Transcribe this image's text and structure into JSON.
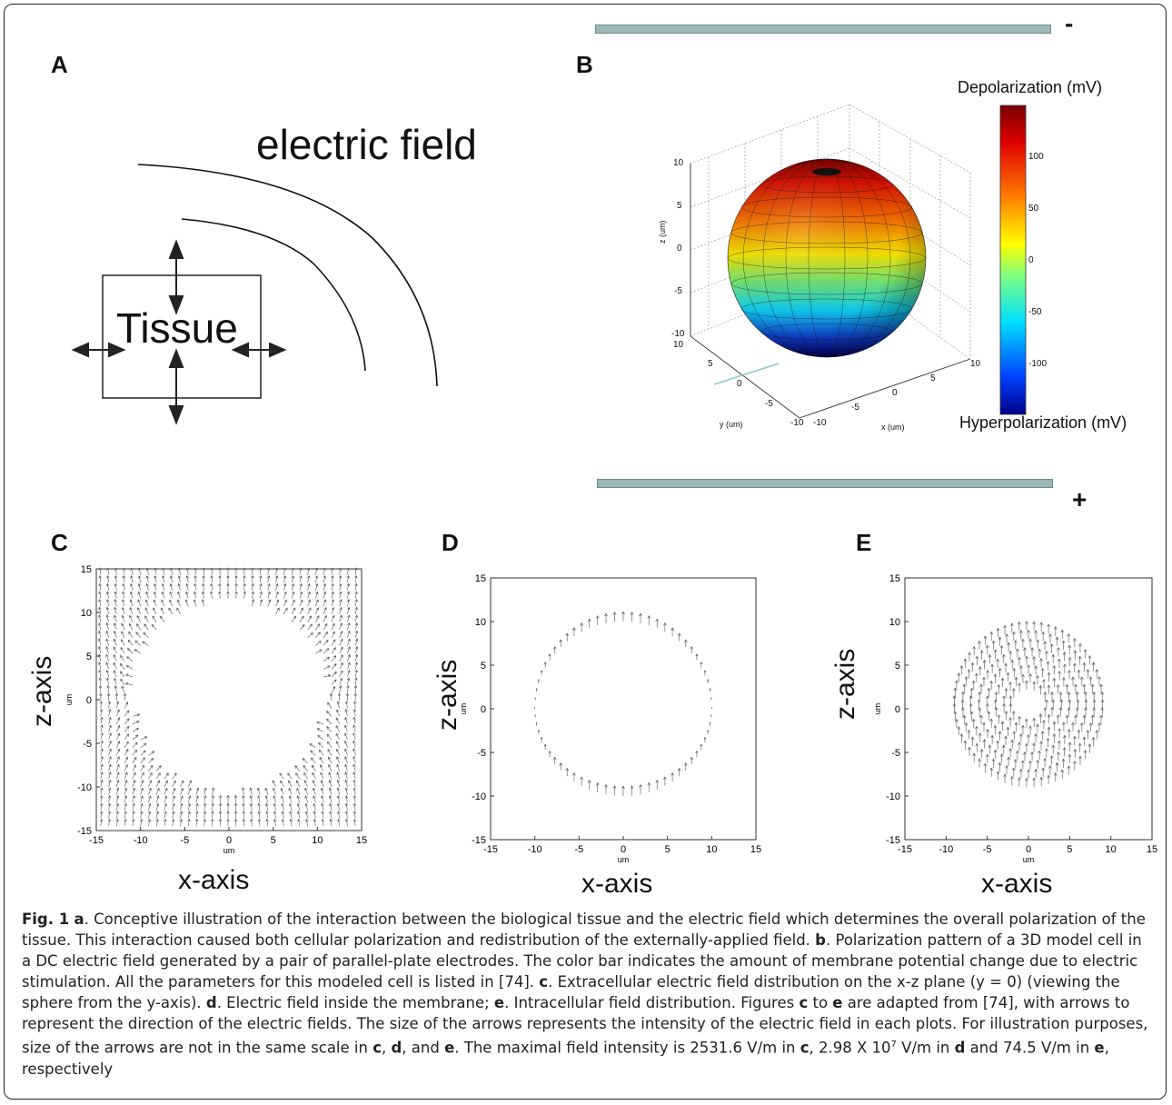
{
  "panels": {
    "a": {
      "label": "A",
      "title": "electric field",
      "tissue": "Tissue"
    },
    "b": {
      "label": "B",
      "minus": "-",
      "plus": "+",
      "z_label": "z (um)",
      "y_label": "y (um)",
      "x_label": "x (um)",
      "z_ticks": [
        "10",
        "5",
        "0",
        "-5",
        "-10"
      ],
      "y_ticks": [
        "10",
        "5",
        "0",
        "-5",
        "-10"
      ],
      "x_ticks": [
        "-10",
        "-5",
        "0",
        "5",
        "10"
      ],
      "colorbar_top": "Depolarization (mV)",
      "colorbar_bottom": "Hyperpolarization (mV)",
      "colorbar_ticks": [
        "100",
        "50",
        "0",
        "-50",
        "-100"
      ]
    },
    "c": {
      "label": "C",
      "xaxis": "x-axis",
      "zaxis": "z-axis",
      "unit": "um",
      "ticks": [
        "15",
        "10",
        "5",
        "0",
        "-5",
        "-10",
        "-15"
      ],
      "xticks": [
        "-15",
        "-10",
        "-5",
        "0",
        "5",
        "10",
        "15"
      ]
    },
    "d": {
      "label": "D",
      "xaxis": "x-axis",
      "zaxis": "z-axis",
      "unit": "um",
      "ticks": [
        "15",
        "10",
        "5",
        "0",
        "-5",
        "-10",
        "-15"
      ],
      "xticks": [
        "-15",
        "-10",
        "-5",
        "0",
        "5",
        "10",
        "15"
      ]
    },
    "e": {
      "label": "E",
      "xaxis": "x-axis",
      "zaxis": "z-axis",
      "unit": "um",
      "ticks": [
        "15",
        "10",
        "5",
        "0",
        "-5",
        "-10",
        "-15"
      ],
      "xticks": [
        "-15",
        "-10",
        "-5",
        "0",
        "5",
        "10",
        "15"
      ]
    }
  },
  "caption": {
    "fig": "Fig. 1",
    "a_label": "a",
    "a_text": ". Conceptive illustration of the interaction between the biological tissue and the electric field which determines the overall polarization of the tissue. This interaction caused both cellular polarization and redistribution of the externally-applied field. ",
    "b_label": "b",
    "b_text": ". Polarization pattern of a 3D model cell in a DC electric field generated by a pair of parallel-plate electrodes. The color bar indicates the amount of membrane potential change due to electric stimulation. All the parameters for this modeled cell is listed in [74]. ",
    "c_label": "c",
    "c_text": ". Extracellular electric field distribution on the x-z plane (y = 0) (viewing the sphere from the y-axis). ",
    "d_label": "d",
    "d_text": ". Electric field inside the membrane; ",
    "e_label": "e",
    "e_text": ". Intracellular field distribution. Figures ",
    "c2": "c",
    "to": " to ",
    "e2": "e",
    "e_text2": " are adapted from [74], with arrows to represent the direction of the electric fields. The size of the arrows represents the intensity of the electric field in each plots. For illustration purposes, size of the arrows are not in the same scale in ",
    "c3": "c",
    "comma": ", ",
    "d3": "d",
    "and": ", and ",
    "e3": "e",
    "max_text1": ". The maximal field intensity is 2531.6 V/m in ",
    "c4": "c",
    "max_text2": ", 2.98 X 10",
    "sup": "7",
    "max_text3": " V/m in ",
    "d4": "d",
    "max_text4": " and 74.5 V/m in ",
    "e4": "e",
    "end": ", respectively"
  }
}
